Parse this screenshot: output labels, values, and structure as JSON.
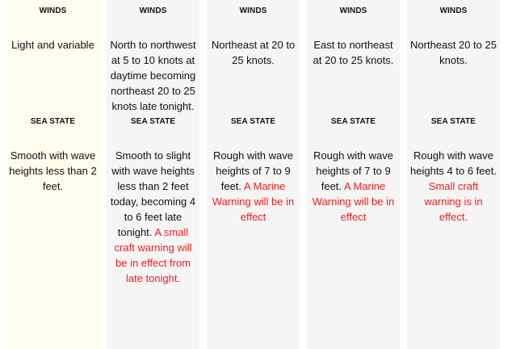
{
  "labels": {
    "winds": "WINDS",
    "sea_state": "SEA STATE"
  },
  "colors": {
    "warning": "#ff1a1a",
    "today_bg": "#fffdee",
    "column_bg": "#f5f5f5"
  },
  "columns": [
    {
      "winds": "Light and variable",
      "sea_state": "Smooth with wave heights less than 2 feet.",
      "warning": ""
    },
    {
      "winds": "North to northwest at 5 to 10 knots at daytime becoming northeast 20 to 25 knots late tonight.",
      "sea_state": "Smooth to slight with wave heights less than 2 feet today, becoming 4 to 6 feet late tonight.",
      "warning": "A small craft warning will be in effect from late tonight."
    },
    {
      "winds": "Northeast at 20 to 25 knots.",
      "sea_state": "Rough with wave heights of 7 to 9 feet.",
      "warning": "A Marine Warning will be in effect"
    },
    {
      "winds": "East to northeast at 20 to 25 knots.",
      "sea_state": "Rough with wave heights of 7 to 9 feet.",
      "warning": "A Marine Warning will be in effect"
    },
    {
      "winds": "Northeast 20 to 25 knots.",
      "sea_state": "Rough with wave heights 4 to 6 feet.",
      "warning": "Small craft warning is in effect."
    }
  ]
}
